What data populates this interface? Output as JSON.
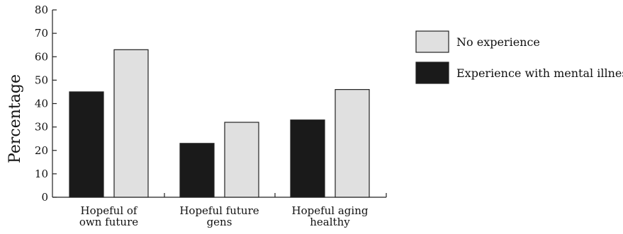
{
  "chart_data": {
    "type": "bar",
    "categories": [
      [
        "Hopeful of",
        "own future"
      ],
      [
        "Hopeful future",
        "gens"
      ],
      [
        "Hopeful aging",
        "healthy"
      ]
    ],
    "series": [
      {
        "name": "Experience with mental illness",
        "values": [
          45,
          23,
          33
        ],
        "color": "#1a1a1a"
      },
      {
        "name": "No experience",
        "values": [
          63,
          32,
          46
        ],
        "color": "#e0e0e0"
      }
    ],
    "legend_order": [
      1,
      0
    ],
    "legend_position": "right",
    "ylabel": "Percentage",
    "xlabel": "",
    "ylim": [
      0,
      80
    ],
    "yticks": [
      0,
      10,
      20,
      30,
      40,
      50,
      60,
      70,
      80
    ],
    "grid": false
  }
}
